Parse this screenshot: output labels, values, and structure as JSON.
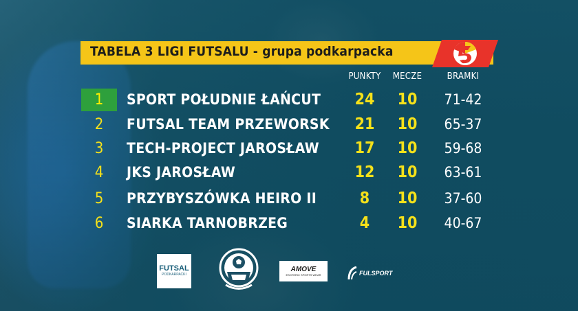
{
  "title": {
    "main": "TABELA 3 LIGI FUTSALU - ",
    "group": "grupa podkarpacka"
  },
  "columns": {
    "points": "PUNKTY",
    "matches": "MECZE",
    "goals": "BRAMKI"
  },
  "rows": [
    {
      "pos": "1",
      "team": "SPORT POŁUDNIE ŁAŃCUT",
      "points": "24",
      "matches": "10",
      "goals": "71-42"
    },
    {
      "pos": "2",
      "team": "FUTSAL TEAM PRZEWORSK",
      "points": "21",
      "matches": "10",
      "goals": "65-37"
    },
    {
      "pos": "3",
      "team": "TECH-PROJECT JAROSŁAW",
      "points": "17",
      "matches": "10",
      "goals": "59-68"
    },
    {
      "pos": "4",
      "team": "JKS JAROSŁAW",
      "points": "12",
      "matches": "10",
      "goals": "63-61"
    },
    {
      "pos": "5",
      "team": "PRZYBYSZÓWKA HEIRO II",
      "points": "8",
      "matches": "10",
      "goals": "37-60"
    },
    {
      "pos": "6",
      "team": "SIARKA TARNOBRZEG",
      "points": "4",
      "matches": "10",
      "goals": "40-67"
    }
  ],
  "sponsors": {
    "futsal": {
      "line1": "FUTSAL",
      "line2": "PODKARPACKI"
    },
    "amove": {
      "line1": "AMOVE",
      "line2": "ESOTERIC SPORTS WEAR"
    },
    "fulsport": {
      "label": "FULSPORT"
    }
  },
  "colors": {
    "title_bar": "#f5c518",
    "highlight": "#2ea03c",
    "numbers": "#f5e11a",
    "background": "#1c4f64"
  }
}
